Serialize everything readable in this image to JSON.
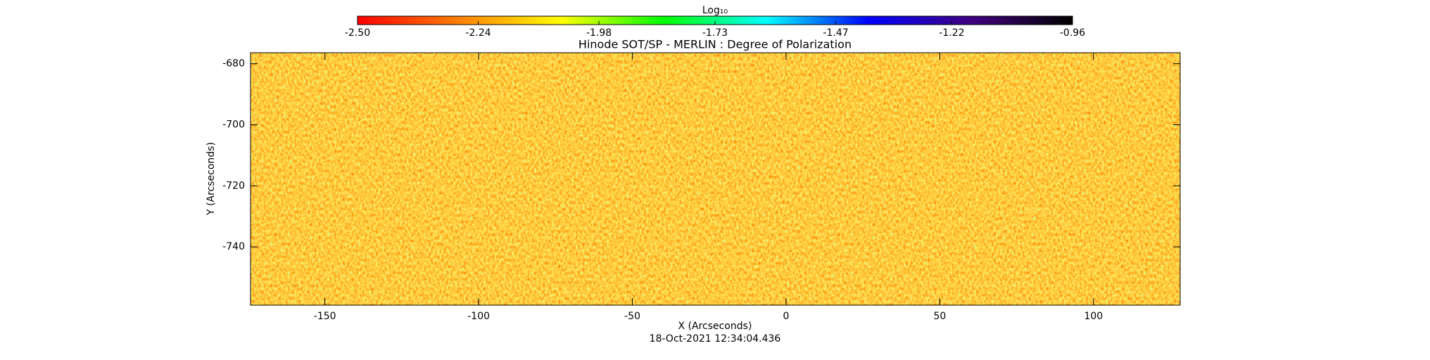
{
  "chart_data": {
    "type": "heatmap",
    "title": "Hinode SOT/SP - MERLIN : Degree of Polarization",
    "colorbar_label": "Log₁₀",
    "clim": [
      -2.5,
      -0.96
    ],
    "cticks": [
      {
        "value": -2.5,
        "label": "-2.50"
      },
      {
        "value": -2.24,
        "label": "-2.24"
      },
      {
        "value": -1.98,
        "label": "-1.98"
      },
      {
        "value": -1.73,
        "label": "-1.73"
      },
      {
        "value": -1.47,
        "label": "-1.47"
      },
      {
        "value": -1.22,
        "label": "-1.22"
      },
      {
        "value": -0.96,
        "label": "-0.96"
      }
    ],
    "colormap": [
      "#ff0000",
      "#ff8000",
      "#ffff00",
      "#00ff00",
      "#00ffff",
      "#0000ff",
      "#400080",
      "#000000"
    ],
    "xlabel": "X (Arcseconds)",
    "ylabel": "Y (Arcseconds)",
    "xlim": [
      -174.2,
      128.2
    ],
    "xticks": [
      -150,
      -100,
      -50,
      0,
      50,
      100
    ],
    "ylim": [
      -759.1,
      -676.4
    ],
    "yticks": [
      -680,
      -700,
      -720,
      -740
    ],
    "footer": "18-Oct-2021 12:34:04.436"
  }
}
